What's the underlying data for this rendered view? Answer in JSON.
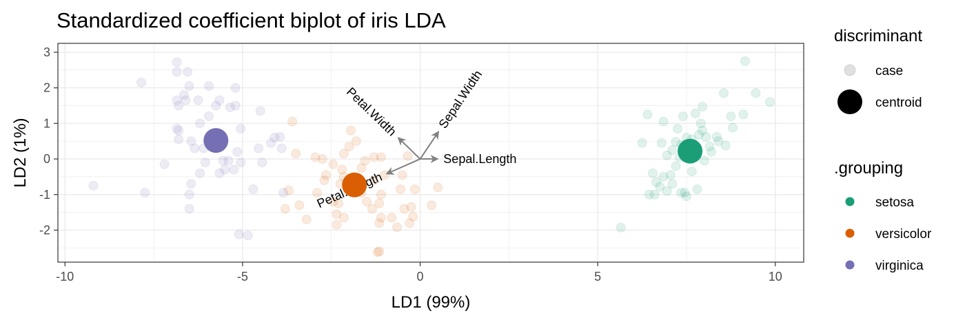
{
  "chart_data": {
    "type": "scatter",
    "title": "Standardized coefficient biplot of iris LDA",
    "xlabel": "LD1 (99%)",
    "ylabel": "LD2 (1%)",
    "xlim": [
      -10.2,
      10.8
    ],
    "ylim": [
      -2.9,
      3.25
    ],
    "x_ticks": [
      -10,
      -5,
      0,
      5,
      10
    ],
    "y_ticks": [
      -2,
      -1,
      0,
      1,
      2,
      3
    ],
    "grid": true,
    "legend_position": "right",
    "legends": [
      {
        "title": "discriminant",
        "entries": [
          {
            "label": "case",
            "kind": "case"
          },
          {
            "label": "centroid",
            "kind": "centroid"
          }
        ]
      },
      {
        "title": ".grouping",
        "entries": [
          {
            "label": "setosa",
            "color": "#1b9e77"
          },
          {
            "label": "versicolor",
            "color": "#d95f02"
          },
          {
            "label": "virginica",
            "color": "#7570b3"
          }
        ]
      }
    ],
    "series": [
      {
        "name": "setosa",
        "color": "#1b9e77",
        "centroid": [
          7.6,
          0.22
        ],
        "cases": [
          [
            9.15,
            2.75
          ],
          [
            9.45,
            1.85
          ],
          [
            8.55,
            1.85
          ],
          [
            9.85,
            1.6
          ],
          [
            7.95,
            1.47
          ],
          [
            7.75,
            1.28
          ],
          [
            9.1,
            1.25
          ],
          [
            6.4,
            1.25
          ],
          [
            7.4,
            1.2
          ],
          [
            8.75,
            1.2
          ],
          [
            7.9,
            1.0
          ],
          [
            6.85,
            1.05
          ],
          [
            7.25,
            0.85
          ],
          [
            7.95,
            0.8
          ],
          [
            8.8,
            0.88
          ],
          [
            7.85,
            0.68
          ],
          [
            8.05,
            0.62
          ],
          [
            8.35,
            0.62
          ],
          [
            7.5,
            0.6
          ],
          [
            7.65,
            0.55
          ],
          [
            6.25,
            0.45
          ],
          [
            6.8,
            0.45
          ],
          [
            8.4,
            0.5
          ],
          [
            7.2,
            0.48
          ],
          [
            7.35,
            0.4
          ],
          [
            8.6,
            0.38
          ],
          [
            8.15,
            0.35
          ],
          [
            7.7,
            0.32
          ],
          [
            7.1,
            0.25
          ],
          [
            7.5,
            0.15
          ],
          [
            8.2,
            0.2
          ],
          [
            6.95,
            0.1
          ],
          [
            7.3,
            0.05
          ],
          [
            8.0,
            -0.05
          ],
          [
            7.2,
            -0.2
          ],
          [
            6.55,
            -0.4
          ],
          [
            7.65,
            -0.35
          ],
          [
            7.05,
            -0.45
          ],
          [
            6.85,
            -0.5
          ],
          [
            6.65,
            -0.65
          ],
          [
            7.1,
            -0.7
          ],
          [
            6.75,
            -0.78
          ],
          [
            6.95,
            -0.9
          ],
          [
            7.35,
            -0.95
          ],
          [
            6.6,
            -1.0
          ],
          [
            7.5,
            -1.05
          ],
          [
            6.45,
            -1.0
          ],
          [
            7.45,
            -0.95
          ],
          [
            7.8,
            -0.85
          ],
          [
            5.65,
            -1.93
          ]
        ]
      },
      {
        "name": "versicolor",
        "color": "#d95f02",
        "centroid": [
          -1.85,
          -0.73
        ],
        "cases": [
          [
            -3.6,
            1.05
          ],
          [
            -1.95,
            0.8
          ],
          [
            -1.8,
            0.5
          ],
          [
            -2.0,
            0.35
          ],
          [
            -3.5,
            0.15
          ],
          [
            -2.95,
            0.05
          ],
          [
            -2.75,
            0.0
          ],
          [
            -2.15,
            0.15
          ],
          [
            -1.3,
            0.05
          ],
          [
            -1.1,
            0.05
          ],
          [
            -0.35,
            0.08
          ],
          [
            -1.55,
            -0.05
          ],
          [
            -2.45,
            -0.15
          ],
          [
            -2.2,
            -0.3
          ],
          [
            -1.65,
            -0.25
          ],
          [
            -2.65,
            -0.45
          ],
          [
            -2.15,
            -0.5
          ],
          [
            -1.0,
            -0.45
          ],
          [
            -0.5,
            -0.45
          ],
          [
            -2.7,
            -0.6
          ],
          [
            -2.25,
            -0.7
          ],
          [
            -1.3,
            -0.6
          ],
          [
            -0.55,
            -0.85
          ],
          [
            -0.15,
            -0.85
          ],
          [
            -2.05,
            -0.85
          ],
          [
            -2.9,
            -0.95
          ],
          [
            -1.65,
            -0.95
          ],
          [
            -1.1,
            -1.0
          ],
          [
            -2.45,
            -1.2
          ],
          [
            -1.5,
            -1.2
          ],
          [
            -2.3,
            -1.25
          ],
          [
            -1.15,
            -1.25
          ],
          [
            -3.4,
            -1.3
          ],
          [
            -1.35,
            -1.4
          ],
          [
            -0.45,
            -1.4
          ],
          [
            -0.25,
            -1.35
          ],
          [
            0.32,
            -1.3
          ],
          [
            -2.35,
            -1.55
          ],
          [
            -2.15,
            -1.65
          ],
          [
            -1.1,
            -1.65
          ],
          [
            -0.8,
            -1.65
          ],
          [
            -0.2,
            -1.62
          ],
          [
            -3.8,
            -1.4
          ],
          [
            -3.2,
            -1.7
          ],
          [
            -1.15,
            -1.8
          ],
          [
            -0.65,
            -1.92
          ],
          [
            -0.3,
            -1.8
          ],
          [
            -2.35,
            -1.85
          ],
          [
            -1.15,
            -2.6
          ],
          [
            -1.2,
            -2.62
          ],
          [
            0.5,
            -0.8
          ],
          [
            -3.7,
            -0.88
          ]
        ]
      },
      {
        "name": "virginica",
        "color": "#7570b3",
        "centroid": [
          -5.75,
          0.52
        ],
        "cases": [
          [
            -6.85,
            2.72
          ],
          [
            -7.85,
            2.15
          ],
          [
            -6.85,
            2.45
          ],
          [
            -6.55,
            2.45
          ],
          [
            -6.5,
            2.05
          ],
          [
            -5.95,
            2.05
          ],
          [
            -5.2,
            2.0
          ],
          [
            -6.65,
            1.8
          ],
          [
            -6.6,
            1.65
          ],
          [
            -6.25,
            1.65
          ],
          [
            -5.65,
            1.65
          ],
          [
            -6.8,
            1.5
          ],
          [
            -6.85,
            1.65
          ],
          [
            -5.2,
            1.5
          ],
          [
            -5.35,
            1.45
          ],
          [
            -5.75,
            1.5
          ],
          [
            -4.5,
            1.35
          ],
          [
            -5.95,
            1.2
          ],
          [
            -6.2,
            1.0
          ],
          [
            -6.85,
            0.85
          ],
          [
            -6.8,
            0.8
          ],
          [
            -5.05,
            0.85
          ],
          [
            -6.8,
            0.55
          ],
          [
            -5.55,
            0.6
          ],
          [
            -4.1,
            0.6
          ],
          [
            -3.95,
            0.62
          ],
          [
            -5.85,
            0.45
          ],
          [
            -6.45,
            0.5
          ],
          [
            -4.2,
            0.45
          ],
          [
            -6.1,
            0.3
          ],
          [
            -6.35,
            0.3
          ],
          [
            -4.55,
            0.3
          ],
          [
            -3.9,
            0.3
          ],
          [
            -5.15,
            0.2
          ],
          [
            -5.4,
            -0.05
          ],
          [
            -5.55,
            -0.05
          ],
          [
            -5.05,
            -0.1
          ],
          [
            -4.45,
            -0.1
          ],
          [
            -7.2,
            -0.15
          ],
          [
            -6.05,
            -0.1
          ],
          [
            -5.5,
            -0.3
          ],
          [
            -5.25,
            -0.3
          ],
          [
            -5.65,
            -0.4
          ],
          [
            -6.2,
            -0.4
          ],
          [
            -7.75,
            -0.95
          ],
          [
            -9.2,
            -0.75
          ],
          [
            -6.45,
            -0.7
          ],
          [
            -4.7,
            -0.85
          ],
          [
            -6.5,
            -1.0
          ],
          [
            -3.85,
            -0.95
          ],
          [
            -6.5,
            -1.4
          ],
          [
            -5.1,
            -2.12
          ],
          [
            -4.85,
            -2.15
          ]
        ]
      }
    ],
    "arrows": [
      {
        "label": "Sepal.Length",
        "end": [
          0.5,
          0.0
        ]
      },
      {
        "label": "Sepal.Width",
        "end": [
          0.52,
          0.77
        ]
      },
      {
        "label": "Petal.Width",
        "end": [
          -0.62,
          0.6
        ]
      },
      {
        "label": "Petal.Length",
        "end": [
          -0.95,
          -0.42
        ]
      }
    ]
  }
}
